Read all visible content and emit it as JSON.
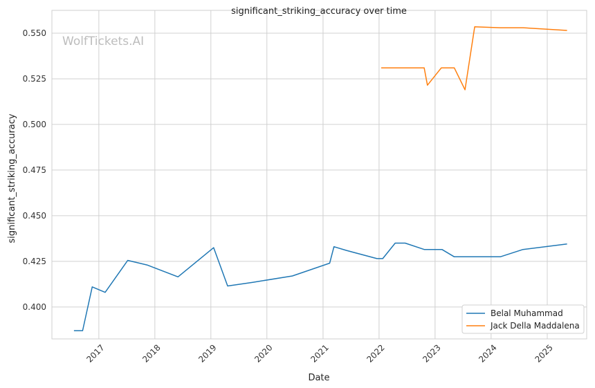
{
  "chart_data": {
    "type": "line",
    "title": "significant_striking_accuracy over time",
    "xlabel": "Date",
    "ylabel": "significant_striking_accuracy",
    "watermark": "WolfTickets.AI",
    "xlim": [
      "2016-03-01",
      "2025-09-15"
    ],
    "ylim": [
      0.3825,
      0.5625
    ],
    "x_ticks": [
      "2017-01-01",
      "2018-01-01",
      "2019-01-01",
      "2020-01-01",
      "2021-01-01",
      "2022-01-01",
      "2023-01-01",
      "2024-01-01",
      "2025-01-01"
    ],
    "x_tick_labels": [
      "2017",
      "2018",
      "2019",
      "2020",
      "2021",
      "2022",
      "2023",
      "2024",
      "2025"
    ],
    "y_ticks": [
      0.4,
      0.425,
      0.45,
      0.475,
      0.5,
      0.525,
      0.55
    ],
    "y_tick_labels": [
      "0.400",
      "0.425",
      "0.450",
      "0.475",
      "0.500",
      "0.525",
      "0.550"
    ],
    "grid": true,
    "legend_position": "lower-right",
    "series": [
      {
        "name": "Belal Muhammad",
        "color": "#1f77b4",
        "points": [
          [
            "2016-07-23",
            0.387
          ],
          [
            "2016-09-17",
            0.387
          ],
          [
            "2016-11-19",
            0.411
          ],
          [
            "2017-02-11",
            0.408
          ],
          [
            "2017-07-08",
            0.4255
          ],
          [
            "2017-11-11",
            0.423
          ],
          [
            "2018-06-01",
            0.4165
          ],
          [
            "2019-01-19",
            0.4325
          ],
          [
            "2019-04-20",
            0.4115
          ],
          [
            "2019-10-01",
            0.4135
          ],
          [
            "2020-06-15",
            0.417
          ],
          [
            "2021-02-13",
            0.424
          ],
          [
            "2021-03-13",
            0.433
          ],
          [
            "2021-06-01",
            0.431
          ],
          [
            "2021-12-18",
            0.4265
          ],
          [
            "2022-01-25",
            0.4265
          ],
          [
            "2022-04-16",
            0.435
          ],
          [
            "2022-06-20",
            0.435
          ],
          [
            "2022-10-22",
            0.4315
          ],
          [
            "2023-02-15",
            0.4315
          ],
          [
            "2023-05-06",
            0.4275
          ],
          [
            "2023-08-01",
            0.4275
          ],
          [
            "2024-03-01",
            0.4275
          ],
          [
            "2024-07-27",
            0.4315
          ],
          [
            "2025-05-10",
            0.4345
          ]
        ]
      },
      {
        "name": "Jack Della Maddalena",
        "color": "#ff7f0e",
        "points": [
          [
            "2022-01-15",
            0.531
          ],
          [
            "2022-10-22",
            0.531
          ],
          [
            "2022-11-12",
            0.5215
          ],
          [
            "2023-02-11",
            0.531
          ],
          [
            "2023-05-06",
            0.531
          ],
          [
            "2023-07-15",
            0.519
          ],
          [
            "2023-09-16",
            0.5535
          ],
          [
            "2024-03-01",
            0.553
          ],
          [
            "2024-07-27",
            0.553
          ],
          [
            "2025-05-10",
            0.5515
          ]
        ]
      }
    ]
  }
}
